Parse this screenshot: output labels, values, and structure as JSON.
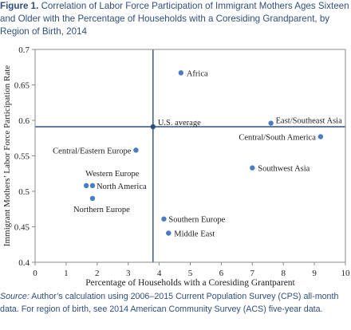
{
  "figure": {
    "label": "Figure 1.",
    "title": "Correlation of Labor Force Participation of Immigrant Mothers Ages Sixteen and Older with the Percentage of Households with a Coresiding Grandparent, by Region of Birth, 2014"
  },
  "source": {
    "label": "Source:",
    "text": "Author’s calculation using 2006–2015 Current Population Survey (CPS) all-month data. For region of birth, see 2014 American Community Survey (ACS) five-year data."
  },
  "chart_data": {
    "type": "scatter",
    "xlabel": "Percentage of Households with a Coresiding Grantparent",
    "ylabel": "Immigrant Mothers’ Labor Force Participation Rate",
    "xlim": [
      0,
      10
    ],
    "ylim": [
      0.4,
      0.7
    ],
    "xticks": [
      0,
      1,
      2,
      3,
      4,
      5,
      6,
      7,
      8,
      9,
      10
    ],
    "yticks": [
      0.4,
      0.45,
      0.5,
      0.55,
      0.6,
      0.65,
      0.7
    ],
    "xtick_labels": [
      "0",
      "1",
      "2",
      "3",
      "4",
      "5",
      "6",
      "7",
      "8",
      "9",
      "10"
    ],
    "ytick_labels": [
      "0.4",
      "0.45",
      "0.5",
      "0.55",
      "0.6",
      "0.65",
      "0.7"
    ],
    "grid": false,
    "point_color": "#4a7dbf",
    "reference_line_color": "#2f4f7f",
    "points": [
      {
        "label": "Africa",
        "x": 4.7,
        "y": 0.667
      },
      {
        "label": "U.S. average",
        "x": 3.8,
        "y": 0.591
      },
      {
        "label": "East/Southeast Asia",
        "x": 7.6,
        "y": 0.596
      },
      {
        "label": "Central/South America",
        "x": 9.2,
        "y": 0.577
      },
      {
        "label": "Central/Eastern Europe",
        "x": 3.25,
        "y": 0.558
      },
      {
        "label": "Southwest Asia",
        "x": 7.0,
        "y": 0.533
      },
      {
        "label": "Western Europe",
        "x": 1.65,
        "y": 0.508
      },
      {
        "label": "North America",
        "x": 1.85,
        "y": 0.508
      },
      {
        "label": "Northern Europe",
        "x": 1.85,
        "y": 0.49
      },
      {
        "label": "Southern Europe",
        "x": 4.15,
        "y": 0.461
      },
      {
        "label": "Middle East",
        "x": 4.3,
        "y": 0.441
      }
    ],
    "reference_lines": {
      "x": 3.8,
      "y": 0.591
    }
  }
}
